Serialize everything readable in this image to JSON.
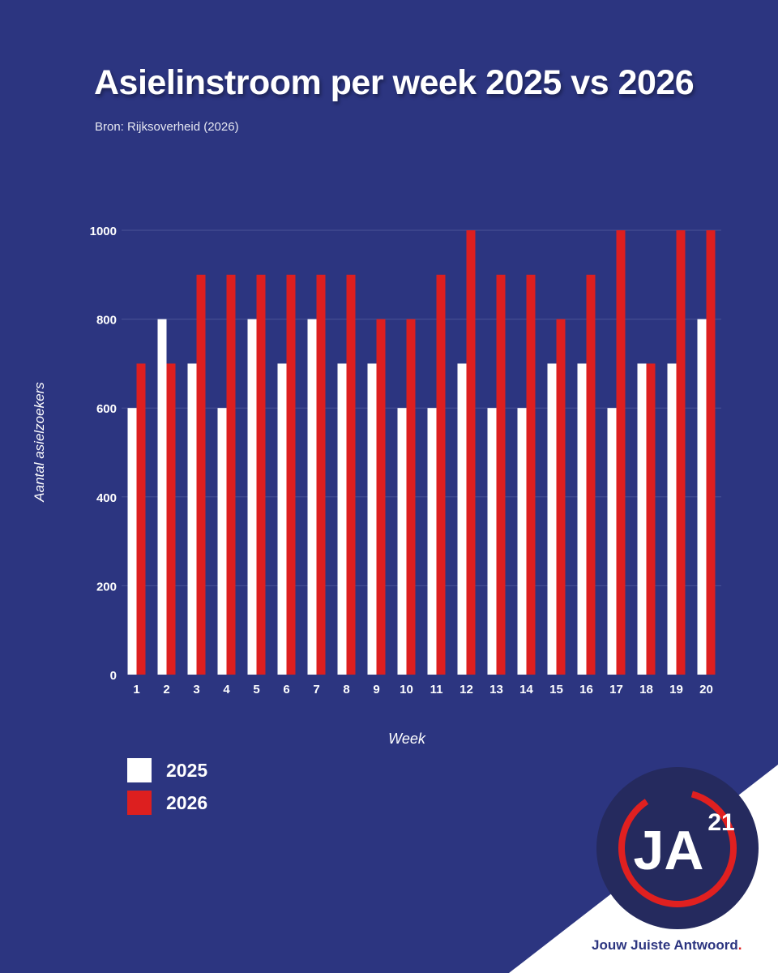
{
  "chart_data": {
    "type": "bar",
    "title": "Asielinstroom per week 2025 vs 2026",
    "subtitle": "Bron: Rijksoverheid (2026)",
    "xlabel": "Week",
    "ylabel": "Aantal asielzoekers",
    "ylim": [
      0,
      1000
    ],
    "yticks": [
      0,
      200,
      400,
      600,
      800,
      1000
    ],
    "grid": true,
    "legend_position": "bottom-left",
    "categories": [
      "1",
      "2",
      "3",
      "4",
      "5",
      "6",
      "7",
      "8",
      "9",
      "10",
      "11",
      "12",
      "13",
      "14",
      "15",
      "16",
      "17",
      "18",
      "19",
      "20"
    ],
    "series": [
      {
        "name": "2025",
        "color": "#ffffff",
        "values": [
          600,
          800,
          700,
          600,
          800,
          700,
          800,
          700,
          700,
          600,
          600,
          700,
          600,
          600,
          700,
          700,
          600,
          700,
          700,
          800
        ]
      },
      {
        "name": "2026",
        "color": "#dd1f1f",
        "values": [
          700,
          700,
          900,
          900,
          900,
          900,
          900,
          900,
          800,
          800,
          900,
          1000,
          900,
          900,
          800,
          900,
          1000,
          700,
          1000,
          1000
        ]
      }
    ]
  },
  "colors": {
    "background": "#2c3580",
    "gridline": "#4a5396",
    "logo_circle": "#252a5e",
    "logo_ring": "#e02020",
    "white": "#ffffff"
  },
  "logo": {
    "letters": "JA",
    "superscript": "21",
    "tagline": "Jouw Juiste Antwoord",
    "tagline_end": "."
  }
}
